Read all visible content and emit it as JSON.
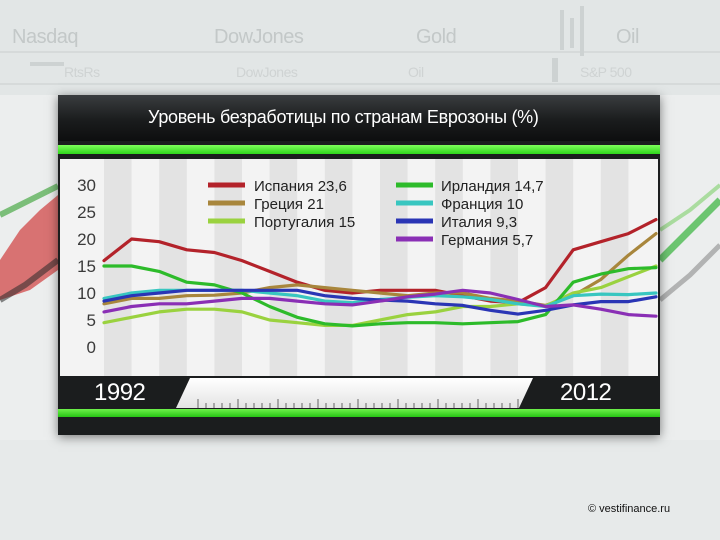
{
  "background": {
    "tickers_top": [
      "Nasdaq",
      "DowJones",
      "Gold",
      "Oil"
    ],
    "tickers_second": [
      "RtsRs",
      "DowJones",
      "Oil",
      "S&P 500"
    ]
  },
  "colors": {
    "panel": "#1b1d1e",
    "accent_green": "#35d41e",
    "plot_background": "#f3f3f3"
  },
  "chart_data": {
    "type": "line",
    "title": "Уровень безработицы по странам Еврозоны (%)",
    "xlabel": "",
    "ylabel": "",
    "x_start_label": "1992",
    "x_end_label": "2012",
    "xlim": [
      1992,
      2012
    ],
    "ylim": [
      0,
      30
    ],
    "yticks": [
      0,
      5,
      10,
      15,
      20,
      25,
      30
    ],
    "ytick_labels": [
      "0",
      "5",
      "10",
      "15",
      "20",
      "25",
      "30"
    ],
    "grid": "vertical stripes",
    "legend_position": "top",
    "x": [
      1992,
      1993,
      1994,
      1995,
      1996,
      1997,
      1998,
      1999,
      2000,
      2001,
      2002,
      2003,
      2004,
      2005,
      2006,
      2007,
      2008,
      2009,
      2010,
      2011,
      2012
    ],
    "series": [
      {
        "name": "Испания 23,6",
        "color": "#b3222a",
        "values": [
          16,
          20,
          19.5,
          18,
          17.5,
          16,
          14,
          12,
          10.5,
          10,
          10.5,
          10.5,
          10.5,
          9.5,
          8.5,
          8.2,
          11,
          18,
          19.5,
          21,
          23.6
        ]
      },
      {
        "name": "Греция 21",
        "color": "#a8863c",
        "values": [
          8,
          9,
          9,
          9.5,
          9.6,
          10,
          11,
          11.5,
          11,
          10.5,
          10,
          9.5,
          10,
          10,
          9,
          8.5,
          7.7,
          9.5,
          12.5,
          17,
          21
        ]
      },
      {
        "name": "Португалия 15",
        "color": "#9ad23f",
        "values": [
          4.5,
          5.5,
          6.5,
          7,
          7,
          6.5,
          5,
          4.5,
          4,
          4,
          5,
          6,
          6.5,
          7.5,
          7.5,
          8,
          7.6,
          10,
          11,
          13,
          15
        ]
      },
      {
        "name": "Ирландия 14,7",
        "color": "#2dbb2a",
        "values": [
          15,
          15,
          14,
          12,
          11.5,
          10,
          7.5,
          5.5,
          4.3,
          3.9,
          4.3,
          4.5,
          4.5,
          4.3,
          4.5,
          4.7,
          6,
          12,
          13.5,
          14.5,
          14.7
        ]
      },
      {
        "name": "Франция 10",
        "color": "#38c6c0",
        "values": [
          9,
          10,
          10.5,
          10.5,
          10.5,
          10.5,
          10,
          9.5,
          8.5,
          8.2,
          8.8,
          9.2,
          9.5,
          9.3,
          8.8,
          8,
          7.5,
          9.5,
          9.8,
          9.7,
          10
        ]
      },
      {
        "name": "Италия 9,3",
        "color": "#2a35b5",
        "values": [
          8.5,
          9.5,
          10,
          10.5,
          10.5,
          10.5,
          10.5,
          10.5,
          9.5,
          9,
          8.7,
          8.5,
          8,
          7.7,
          6.8,
          6.1,
          6.8,
          7.8,
          8.4,
          8.4,
          9.3
        ]
      },
      {
        "name": "Германия  5,7",
        "color": "#8a2fb5",
        "values": [
          6.5,
          7.5,
          8,
          8,
          8.5,
          9,
          9,
          8.5,
          8,
          7.8,
          8.5,
          9.3,
          9.8,
          10.5,
          10,
          8.8,
          7.5,
          7.8,
          7,
          6,
          5.7
        ]
      }
    ]
  },
  "timeline": {
    "start": "1992",
    "end": "2012"
  },
  "credit": "© vestifinance.ru"
}
